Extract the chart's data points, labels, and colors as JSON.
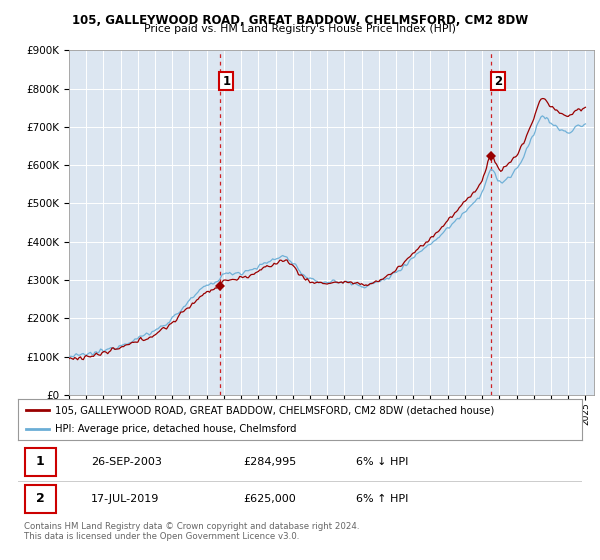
{
  "title1": "105, GALLEYWOOD ROAD, GREAT BADDOW, CHELMSFORD, CM2 8DW",
  "title2": "Price paid vs. HM Land Registry's House Price Index (HPI)",
  "legend_line1": "105, GALLEYWOOD ROAD, GREAT BADDOW, CHELMSFORD, CM2 8DW (detached house)",
  "legend_line2": "HPI: Average price, detached house, Chelmsford",
  "annotation1_date": "26-SEP-2003",
  "annotation1_price": "£284,995",
  "annotation1_hpi": "6% ↓ HPI",
  "annotation2_date": "17-JUL-2019",
  "annotation2_price": "£625,000",
  "annotation2_hpi": "6% ↑ HPI",
  "footer": "Contains HM Land Registry data © Crown copyright and database right 2024.\nThis data is licensed under the Open Government Licence v3.0.",
  "sale1_year": 2003.75,
  "sale1_value": 284995,
  "sale2_year": 2019.54,
  "sale2_value": 625000,
  "hpi_color": "#6baed6",
  "price_color": "#990000",
  "vline_color": "#cc0000",
  "plot_bg_color": "#dce6f1",
  "ylim": [
    0,
    900000
  ],
  "xlim_start": 1995,
  "xlim_end": 2025.5
}
